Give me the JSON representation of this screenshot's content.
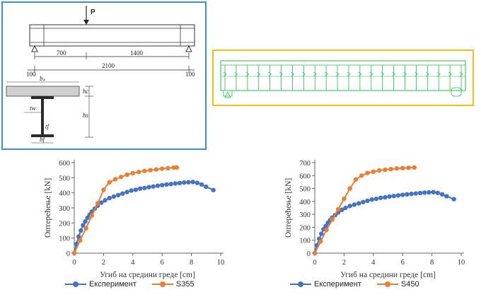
{
  "beam_drawing": {
    "load_label": "P",
    "dims": {
      "d700": "700",
      "d1400": "1400",
      "d2100": "2100",
      "d100_left": "100",
      "d100_right": "100"
    },
    "section_labels": {
      "bs": "bₛ",
      "hc": "hc",
      "tw": "tw",
      "hs": "hs",
      "tf": "tf",
      "bf": "bf"
    }
  },
  "colors": {
    "beam_border": "#3a8fd0",
    "model_border": "#f0c020",
    "model_lines": "#22c04a",
    "experiment": "#4472c4",
    "s355": "#ed7d31",
    "s450": "#ed7d31"
  },
  "chart_data": [
    {
      "type": "scatter",
      "xlabel": "Угиб на средини греде [cm]",
      "ylabel": "Оптерећење [kN]",
      "xlim": [
        0,
        10
      ],
      "ylim": [
        0,
        600
      ],
      "xticks": [
        "0",
        "2",
        "4",
        "6",
        "8",
        "10"
      ],
      "yticks": [
        "0",
        "100",
        "200",
        "300",
        "400",
        "500",
        "600"
      ],
      "legend_position": "bottom",
      "series": [
        {
          "name": "Експеримент",
          "color": "#4472c4",
          "x": [
            0.0,
            0.15,
            0.3,
            0.45,
            0.6,
            0.75,
            0.9,
            1.05,
            1.2,
            1.4,
            1.6,
            1.85,
            2.1,
            2.4,
            2.7,
            3.0,
            3.3,
            3.6,
            3.9,
            4.2,
            4.5,
            4.8,
            5.1,
            5.4,
            5.7,
            6.0,
            6.3,
            6.6,
            6.9,
            7.2,
            7.5,
            7.8,
            8.1,
            8.4,
            8.7,
            9.0,
            9.5
          ],
          "y": [
            0,
            60,
            110,
            150,
            185,
            210,
            235,
            255,
            275,
            295,
            315,
            335,
            350,
            365,
            375,
            385,
            395,
            405,
            415,
            420,
            428,
            432,
            438,
            442,
            447,
            451,
            455,
            458,
            462,
            465,
            468,
            470,
            472,
            466,
            455,
            440,
            418
          ]
        },
        {
          "name": "S355",
          "color": "#ed7d31",
          "x": [
            0.0,
            0.4,
            0.8,
            1.2,
            1.6,
            2.0,
            2.4,
            2.8,
            3.2,
            3.6,
            4.0,
            4.4,
            4.8,
            5.2,
            5.6,
            6.0,
            6.4,
            6.8,
            7.0
          ],
          "y": [
            0,
            85,
            165,
            250,
            330,
            420,
            470,
            490,
            505,
            520,
            530,
            538,
            545,
            550,
            555,
            560,
            563,
            567,
            568
          ]
        }
      ]
    },
    {
      "type": "scatter",
      "xlabel": "Угиб на средини греде [cm]",
      "ylabel": "Оптерећење [kN]",
      "xlim": [
        0,
        10
      ],
      "ylim": [
        0,
        700
      ],
      "xticks": [
        "0",
        "2",
        "4",
        "6",
        "8",
        "10"
      ],
      "yticks": [
        "0",
        "100",
        "200",
        "300",
        "400",
        "500",
        "600",
        "700"
      ],
      "legend_position": "bottom",
      "series": [
        {
          "name": "Експеримент",
          "color": "#4472c4",
          "x": [
            0.0,
            0.15,
            0.3,
            0.45,
            0.6,
            0.75,
            0.9,
            1.05,
            1.2,
            1.4,
            1.6,
            1.85,
            2.1,
            2.4,
            2.7,
            3.0,
            3.3,
            3.6,
            3.9,
            4.2,
            4.5,
            4.8,
            5.1,
            5.4,
            5.7,
            6.0,
            6.3,
            6.6,
            6.9,
            7.2,
            7.5,
            7.8,
            8.1,
            8.4,
            8.7,
            9.0,
            9.5
          ],
          "y": [
            0,
            60,
            110,
            150,
            185,
            210,
            235,
            255,
            275,
            295,
            315,
            335,
            350,
            365,
            375,
            385,
            395,
            405,
            415,
            420,
            428,
            432,
            438,
            442,
            447,
            451,
            455,
            458,
            462,
            465,
            468,
            470,
            472,
            466,
            455,
            440,
            418
          ]
        },
        {
          "name": "S450",
          "color": "#ed7d31",
          "x": [
            0.0,
            0.4,
            0.8,
            1.2,
            1.6,
            2.0,
            2.4,
            2.8,
            3.2,
            3.6,
            4.0,
            4.4,
            4.8,
            5.2,
            5.6,
            6.0,
            6.4,
            6.8
          ],
          "y": [
            0,
            90,
            180,
            260,
            340,
            420,
            500,
            570,
            600,
            620,
            630,
            640,
            645,
            650,
            655,
            658,
            660,
            662
          ]
        }
      ]
    }
  ]
}
